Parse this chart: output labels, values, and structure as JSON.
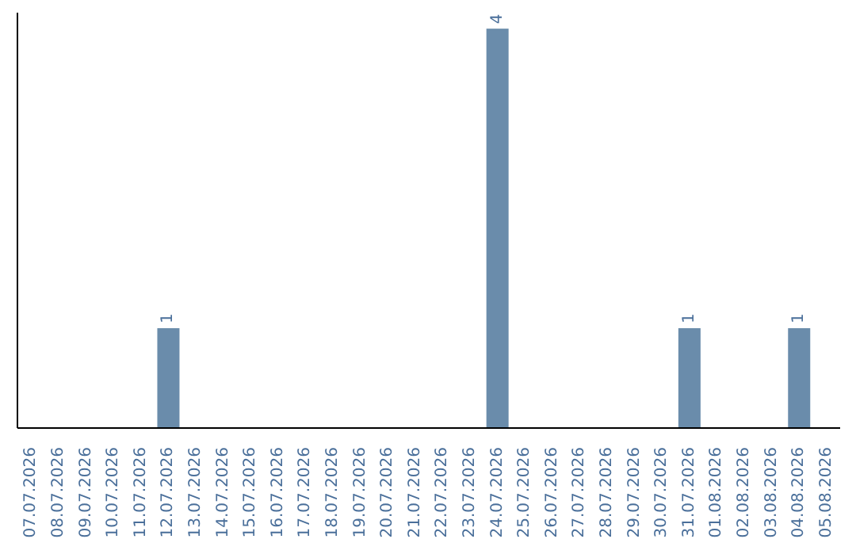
{
  "chart_data": {
    "type": "bar",
    "categories": [
      "07.07.2026",
      "08.07.2026",
      "09.07.2026",
      "10.07.2026",
      "11.07.2026",
      "12.07.2026",
      "13.07.2026",
      "14.07.2026",
      "15.07.2026",
      "16.07.2026",
      "17.07.2026",
      "18.07.2026",
      "19.07.2026",
      "20.07.2026",
      "21.07.2026",
      "22.07.2026",
      "23.07.2026",
      "24.07.2026",
      "25.07.2026",
      "26.07.2026",
      "27.07.2026",
      "28.07.2026",
      "29.07.2026",
      "30.07.2026",
      "31.07.2026",
      "01.08.2026",
      "02.08.2026",
      "03.08.2026",
      "04.08.2026",
      "05.08.2026"
    ],
    "values": [
      0,
      0,
      0,
      0,
      0,
      1,
      0,
      0,
      0,
      0,
      0,
      0,
      0,
      0,
      0,
      0,
      0,
      4,
      0,
      0,
      0,
      0,
      0,
      0,
      1,
      0,
      0,
      0,
      1,
      0
    ],
    "value_labels": [
      null,
      null,
      null,
      null,
      null,
      "1",
      null,
      null,
      null,
      null,
      null,
      null,
      null,
      null,
      null,
      null,
      null,
      "4",
      null,
      null,
      null,
      null,
      null,
      null,
      "1",
      null,
      null,
      null,
      "1",
      null
    ],
    "color": "#6a8cab",
    "grid": false,
    "legend": false
  }
}
